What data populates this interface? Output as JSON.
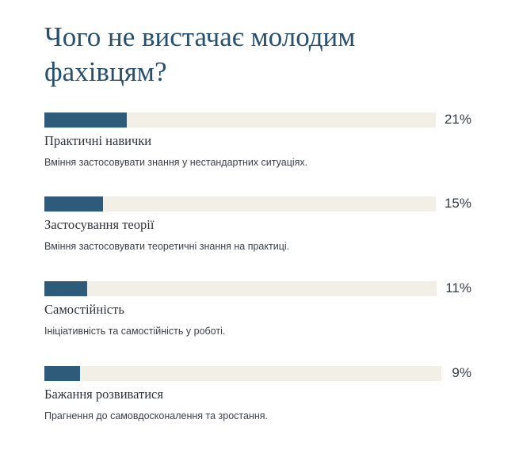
{
  "title": "Чого не вистачає молодим фахівцям?",
  "chart_data": {
    "type": "bar",
    "title": "Чого не вистачає молодим фахівцям?",
    "unit": "%",
    "xlim": [
      0,
      100
    ],
    "colors": {
      "bar": "#2e5b7a",
      "track": "#f2efe6",
      "title": "#27506f"
    },
    "items": [
      {
        "category": "Практичні навички",
        "value": 21,
        "value_label": "21%",
        "description": "Вміння застосовувати знання у нестандартних ситуаціях."
      },
      {
        "category": "Застосування теорії",
        "value": 15,
        "value_label": "15%",
        "description": "Вміння застосовувати теоретичні знання на практиці."
      },
      {
        "category": "Самостійність",
        "value": 11,
        "value_label": "11%",
        "description": "Ініціативність та самостійність у роботі."
      },
      {
        "category": "Бажання розвиватися",
        "value": 9,
        "value_label": "9%",
        "description": "Прагнення до самовдосконалення та зростання."
      }
    ]
  }
}
